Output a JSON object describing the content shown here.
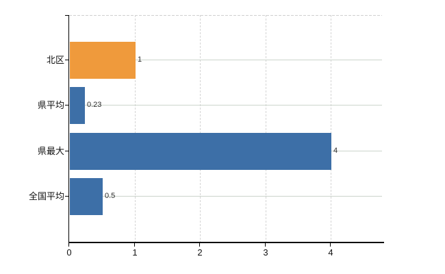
{
  "chart_data": {
    "type": "bar",
    "orientation": "horizontal",
    "title": "",
    "xlabel": "",
    "ylabel": "",
    "categories": [
      "北区",
      "県平均",
      "県最大",
      "全国平均"
    ],
    "values": [
      1,
      0.23,
      4,
      0.5
    ],
    "value_labels": [
      "1",
      "0.23",
      "4",
      "0.5"
    ],
    "bar_colors": [
      "#EF9A3C",
      "#3D6FA7",
      "#3D6FA7",
      "#3D6FA7"
    ],
    "x_ticks": [
      0,
      1,
      2,
      3,
      4
    ],
    "x_tick_labels": [
      "0",
      "1",
      "2",
      "3",
      "4"
    ],
    "xlim": [
      0,
      4.78
    ],
    "grid": true,
    "grid_style": {
      "horizontal": "solid",
      "vertical": "dashed",
      "top_border": "dashed"
    },
    "legend_position": "none"
  },
  "colors": {
    "background": "#ffffff",
    "bar_orange": "#EF9A3C",
    "bar_blue": "#3D6FA7",
    "axis": "#000000",
    "gridline_horizontal": "#ccd4cc",
    "gridline_vertical": "#d4d4d4",
    "top_border": "#cfcfcf",
    "tick_label_text": "#111111",
    "value_label_text": "#2b2b2b"
  }
}
